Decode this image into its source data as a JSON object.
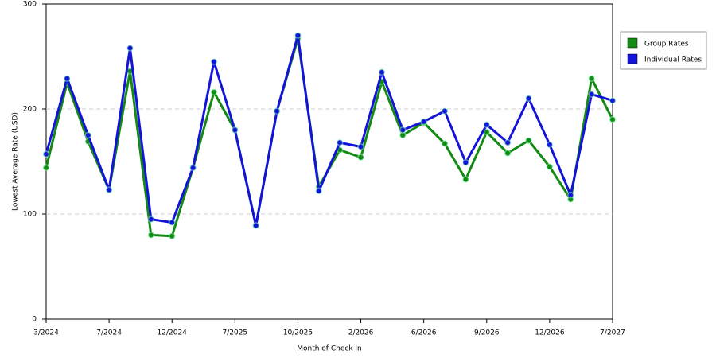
{
  "chart_data": {
    "type": "line",
    "x_label": "Month of Check In",
    "y_label": "Lowest Average Rate (USD)",
    "categories": [
      "3/2024",
      null,
      null,
      "7/2024",
      null,
      null,
      "12/2024",
      null,
      null,
      "7/2025",
      null,
      null,
      "10/2025",
      null,
      null,
      "2/2026",
      null,
      null,
      "6/2026",
      null,
      null,
      "9/2026",
      null,
      null,
      "12/2026",
      null,
      null,
      "7/2027"
    ],
    "series": [
      {
        "name": "Group Rates",
        "color": "#138a13",
        "values": [
          144,
          225,
          169,
          123,
          236,
          80,
          79,
          144,
          216,
          180,
          89,
          198,
          267,
          126,
          161,
          154,
          226,
          175,
          187,
          167,
          133,
          178,
          158,
          170,
          145,
          114,
          229,
          190
        ]
      },
      {
        "name": "Individual Rates",
        "color": "#1414d8",
        "values": [
          157,
          229,
          175,
          123,
          258,
          95,
          92,
          144,
          245,
          180,
          89,
          198,
          270,
          122,
          168,
          164,
          235,
          180,
          188,
          198,
          149,
          185,
          168,
          210,
          166,
          118,
          214,
          208
        ]
      }
    ],
    "ylim": [
      0,
      300
    ],
    "yticks": [
      0,
      100,
      200,
      300
    ],
    "grid": true,
    "legend": "right"
  }
}
